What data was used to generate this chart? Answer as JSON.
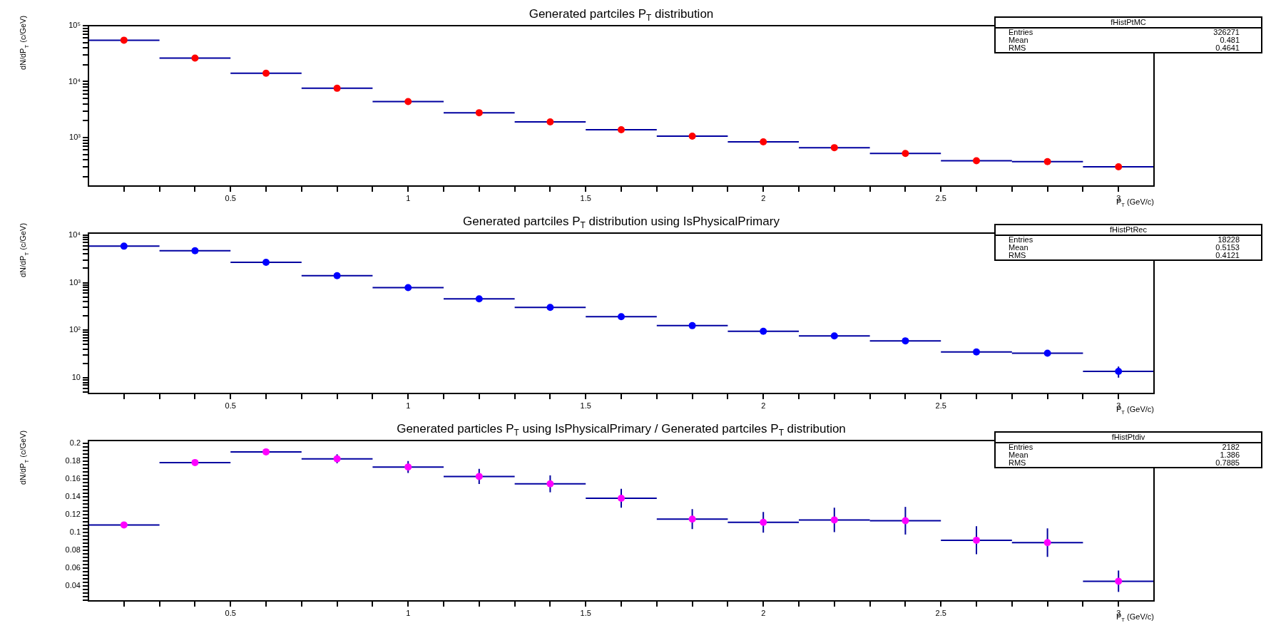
{
  "chart_data": [
    {
      "type": "scatter",
      "title": "Generated partciles P$_{T}$ distribution",
      "xlabel": "P$_{T}$ (GeV/c)",
      "ylabel": "dN/dP$_{T}$ (c/GeV)",
      "x": [
        0.2,
        0.4,
        0.6,
        0.8,
        1.0,
        1.2,
        1.4,
        1.6,
        1.8,
        2.0,
        2.2,
        2.4,
        2.6,
        2.8,
        3.0
      ],
      "series": [
        {
          "color": "#ff0000",
          "values": [
            55000,
            26300,
            14100,
            7600,
            4400,
            2780,
            1910,
            1380,
            1060,
            840,
            660,
            520,
            385,
            372,
            300
          ],
          "xerrors": [
            0.1,
            0.1,
            0.1,
            0.1,
            0.1,
            0.1,
            0.1,
            0.1,
            0.1,
            0.1,
            0.1,
            0.1,
            0.1,
            0.1,
            0.1
          ]
        }
      ],
      "xlim": [
        0.1,
        3.1
      ],
      "xticks": [
        {
          "value": 0.2,
          "label": null
        },
        {
          "value": 0.3,
          "label": null
        },
        {
          "value": 0.4,
          "label": null
        },
        0.5,
        {
          "value": 0.6,
          "label": null
        },
        {
          "value": 0.7,
          "label": null
        },
        {
          "value": 0.8,
          "label": null
        },
        {
          "value": 0.9,
          "label": null
        },
        1,
        {
          "value": 1.1,
          "label": null
        },
        {
          "value": 1.2,
          "label": null
        },
        {
          "value": 1.3,
          "label": null
        },
        {
          "value": 1.4,
          "label": null
        },
        1.5,
        {
          "value": 1.6,
          "label": null
        },
        {
          "value": 1.7,
          "label": null
        },
        {
          "value": 1.8,
          "label": null
        },
        {
          "value": 1.9,
          "label": null
        },
        2,
        {
          "value": 2.1,
          "label": null
        },
        {
          "value": 2.2,
          "label": null
        },
        {
          "value": 2.3,
          "label": null
        },
        {
          "value": 2.4,
          "label": null
        },
        2.5,
        {
          "value": 2.6,
          "label": null
        },
        {
          "value": 2.7,
          "label": null
        },
        {
          "value": 2.8,
          "label": null
        },
        {
          "value": 2.9,
          "label": null
        },
        3
      ],
      "ylim": [
        136,
        100000
      ],
      "yticks": [
        {
          "value": 200,
          "label": null
        },
        {
          "value": 300,
          "label": null
        },
        {
          "value": 400,
          "label": null
        },
        {
          "value": 500,
          "label": null
        },
        {
          "value": 600,
          "label": null
        },
        {
          "value": 700,
          "label": null
        },
        {
          "value": 800,
          "label": null
        },
        {
          "value": 900,
          "label": null
        },
        {
          "value": 1000,
          "label": "10³"
        },
        {
          "value": 2000,
          "label": null
        },
        {
          "value": 3000,
          "label": null
        },
        {
          "value": 4000,
          "label": null
        },
        {
          "value": 5000,
          "label": null
        },
        {
          "value": 6000,
          "label": null
        },
        {
          "value": 7000,
          "label": null
        },
        {
          "value": 8000,
          "label": null
        },
        {
          "value": 9000,
          "label": null
        },
        {
          "value": 10000,
          "label": "10⁴"
        },
        {
          "value": 20000,
          "label": null
        },
        {
          "value": 30000,
          "label": null
        },
        {
          "value": 40000,
          "label": null
        },
        {
          "value": 50000,
          "label": null
        },
        {
          "value": 60000,
          "label": null
        },
        {
          "value": 70000,
          "label": null
        },
        {
          "value": 80000,
          "label": null
        },
        {
          "value": 90000,
          "label": null
        },
        {
          "value": 100000,
          "label": "10⁵"
        }
      ],
      "log": true,
      "grid": false,
      "legend": false,
      "marker": "circle",
      "annotations": [
        "fHistPtMC",
        "Entries 326271",
        "Mean 0.481",
        "RMS 0.4641"
      ]
    },
    {
      "type": "scatter",
      "title": "Generated partciles P$_{T}$ distribution using IsPhysicalPrimary",
      "xlabel": "P$_{T}$ (GeV/c)",
      "ylabel": "dN/dP$_{T}$ (c/GeV)",
      "x": [
        0.2,
        0.4,
        0.6,
        0.8,
        1.0,
        1.2,
        1.4,
        1.6,
        1.8,
        2.0,
        2.2,
        2.4,
        2.6,
        2.8,
        3.0
      ],
      "series": [
        {
          "color": "#0000ff",
          "values": [
            5840,
            4690,
            2680,
            1400,
            787,
            458,
            302,
            193,
            125,
            95,
            76,
            60,
            35,
            33,
            13.7
          ],
          "errors": [
            null,
            null,
            null,
            null,
            null,
            null,
            null,
            null,
            null,
            null,
            null,
            null,
            null,
            null,
            3.6
          ],
          "xerrors": [
            0.1,
            0.1,
            0.1,
            0.1,
            0.1,
            0.1,
            0.1,
            0.1,
            0.1,
            0.1,
            0.1,
            0.1,
            0.1,
            0.1,
            0.1
          ]
        }
      ],
      "xlim": [
        0.1,
        3.1
      ],
      "xticks": [
        {
          "value": 0.2,
          "label": null
        },
        {
          "value": 0.3,
          "label": null
        },
        {
          "value": 0.4,
          "label": null
        },
        0.5,
        {
          "value": 0.6,
          "label": null
        },
        {
          "value": 0.7,
          "label": null
        },
        {
          "value": 0.8,
          "label": null
        },
        {
          "value": 0.9,
          "label": null
        },
        1,
        {
          "value": 1.1,
          "label": null
        },
        {
          "value": 1.2,
          "label": null
        },
        {
          "value": 1.3,
          "label": null
        },
        {
          "value": 1.4,
          "label": null
        },
        1.5,
        {
          "value": 1.6,
          "label": null
        },
        {
          "value": 1.7,
          "label": null
        },
        {
          "value": 1.8,
          "label": null
        },
        {
          "value": 1.9,
          "label": null
        },
        2,
        {
          "value": 2.1,
          "label": null
        },
        {
          "value": 2.2,
          "label": null
        },
        {
          "value": 2.3,
          "label": null
        },
        {
          "value": 2.4,
          "label": null
        },
        2.5,
        {
          "value": 2.6,
          "label": null
        },
        {
          "value": 2.7,
          "label": null
        },
        {
          "value": 2.8,
          "label": null
        },
        {
          "value": 2.9,
          "label": null
        },
        3
      ],
      "ylim": [
        4.7,
        11000
      ],
      "yticks": [
        {
          "value": 5,
          "label": null
        },
        {
          "value": 6,
          "label": null
        },
        {
          "value": 7,
          "label": null
        },
        {
          "value": 8,
          "label": null
        },
        {
          "value": 9,
          "label": null
        },
        10,
        {
          "value": 20,
          "label": null
        },
        {
          "value": 30,
          "label": null
        },
        {
          "value": 40,
          "label": null
        },
        {
          "value": 50,
          "label": null
        },
        {
          "value": 60,
          "label": null
        },
        {
          "value": 70,
          "label": null
        },
        {
          "value": 80,
          "label": null
        },
        {
          "value": 90,
          "label": null
        },
        {
          "value": 100,
          "label": "10²"
        },
        {
          "value": 200,
          "label": null
        },
        {
          "value": 300,
          "label": null
        },
        {
          "value": 400,
          "label": null
        },
        {
          "value": 500,
          "label": null
        },
        {
          "value": 600,
          "label": null
        },
        {
          "value": 700,
          "label": null
        },
        {
          "value": 800,
          "label": null
        },
        {
          "value": 900,
          "label": null
        },
        {
          "value": 1000,
          "label": "10³"
        },
        {
          "value": 2000,
          "label": null
        },
        {
          "value": 3000,
          "label": null
        },
        {
          "value": 4000,
          "label": null
        },
        {
          "value": 5000,
          "label": null
        },
        {
          "value": 6000,
          "label": null
        },
        {
          "value": 7000,
          "label": null
        },
        {
          "value": 8000,
          "label": null
        },
        {
          "value": 9000,
          "label": null
        },
        {
          "value": 10000,
          "label": "10⁴"
        }
      ],
      "log": true,
      "grid": false,
      "legend": false,
      "marker": "circle",
      "annotations": [
        "fHistPtRec",
        "Entries 18228",
        "Mean 0.5153",
        "RMS 0.4121"
      ]
    },
    {
      "type": "scatter",
      "title": "Generated particles P$_{T}$ using IsPhysicalPrimary / Generated partciles P$_{T}$ distribution",
      "xlabel": "P$_{T}$ (GeV/c)",
      "ylabel": "dN/dP$_{T}$ (c/GeV)",
      "x": [
        0.2,
        0.4,
        0.6,
        0.8,
        1.0,
        1.2,
        1.4,
        1.6,
        1.8,
        2.0,
        2.2,
        2.4,
        2.6,
        2.8,
        3.0
      ],
      "series": [
        {
          "color": "#ff00ff",
          "values": [
            0.1083,
            0.1783,
            0.1903,
            0.1825,
            0.1733,
            0.1627,
            0.1544,
            0.1382,
            0.1148,
            0.1112,
            0.1139,
            0.113,
            0.0911,
            0.0884,
            0.0451
          ],
          "errors": [
            null,
            null,
            null,
            0.005,
            0.0067,
            0.0085,
            0.0095,
            0.0106,
            0.0112,
            0.0116,
            0.0137,
            0.0155,
            0.0157,
            0.016,
            0.012
          ],
          "xerrors": [
            0.1,
            0.1,
            0.1,
            0.1,
            0.1,
            0.1,
            0.1,
            0.1,
            0.1,
            0.1,
            0.1,
            0.1,
            0.1,
            0.1,
            0.1
          ]
        }
      ],
      "xlim": [
        0.1,
        3.1
      ],
      "xticks": [
        {
          "value": 0.2,
          "label": null
        },
        {
          "value": 0.3,
          "label": null
        },
        {
          "value": 0.4,
          "label": null
        },
        0.5,
        {
          "value": 0.6,
          "label": null
        },
        {
          "value": 0.7,
          "label": null
        },
        {
          "value": 0.8,
          "label": null
        },
        {
          "value": 0.9,
          "label": null
        },
        1,
        {
          "value": 1.1,
          "label": null
        },
        {
          "value": 1.2,
          "label": null
        },
        {
          "value": 1.3,
          "label": null
        },
        {
          "value": 1.4,
          "label": null
        },
        1.5,
        {
          "value": 1.6,
          "label": null
        },
        {
          "value": 1.7,
          "label": null
        },
        {
          "value": 1.8,
          "label": null
        },
        {
          "value": 1.9,
          "label": null
        },
        2,
        {
          "value": 2.1,
          "label": null
        },
        {
          "value": 2.2,
          "label": null
        },
        {
          "value": 2.3,
          "label": null
        },
        {
          "value": 2.4,
          "label": null
        },
        2.5,
        {
          "value": 2.6,
          "label": null
        },
        {
          "value": 2.7,
          "label": null
        },
        {
          "value": 2.8,
          "label": null
        },
        {
          "value": 2.9,
          "label": null
        },
        3
      ],
      "ylim": [
        0.023,
        0.203
      ],
      "yticks": [
        {
          "value": 0.024,
          "label": null
        },
        {
          "value": 0.028,
          "label": null
        },
        {
          "value": 0.032,
          "label": null
        },
        {
          "value": 0.036,
          "label": null
        },
        0.04,
        {
          "value": 0.044,
          "label": null
        },
        {
          "value": 0.048,
          "label": null
        },
        {
          "value": 0.052,
          "label": null
        },
        {
          "value": 0.056,
          "label": null
        },
        0.06,
        {
          "value": 0.064,
          "label": null
        },
        {
          "value": 0.068,
          "label": null
        },
        {
          "value": 0.072,
          "label": null
        },
        {
          "value": 0.076,
          "label": null
        },
        0.08,
        {
          "value": 0.084,
          "label": null
        },
        {
          "value": 0.088,
          "label": null
        },
        {
          "value": 0.092,
          "label": null
        },
        {
          "value": 0.096,
          "label": null
        },
        0.1,
        {
          "value": 0.104,
          "label": null
        },
        {
          "value": 0.108,
          "label": null
        },
        {
          "value": 0.112,
          "label": null
        },
        {
          "value": 0.116,
          "label": null
        },
        0.12,
        {
          "value": 0.124,
          "label": null
        },
        {
          "value": 0.128,
          "label": null
        },
        {
          "value": 0.132,
          "label": null
        },
        {
          "value": 0.136,
          "label": null
        },
        0.14,
        {
          "value": 0.144,
          "label": null
        },
        {
          "value": 0.148,
          "label": null
        },
        {
          "value": 0.152,
          "label": null
        },
        {
          "value": 0.156,
          "label": null
        },
        0.16,
        {
          "value": 0.164,
          "label": null
        },
        {
          "value": 0.168,
          "label": null
        },
        {
          "value": 0.172,
          "label": null
        },
        {
          "value": 0.176,
          "label": null
        },
        0.18,
        {
          "value": 0.184,
          "label": null
        },
        {
          "value": 0.188,
          "label": null
        },
        {
          "value": 0.192,
          "label": null
        },
        {
          "value": 0.196,
          "label": null
        },
        0.2
      ],
      "grid": false,
      "legend": false,
      "marker": "circle",
      "annotations": [
        "fHistPtdiv",
        "Entries 2182",
        "Mean 1.386",
        "RMS 0.7885"
      ]
    }
  ]
}
